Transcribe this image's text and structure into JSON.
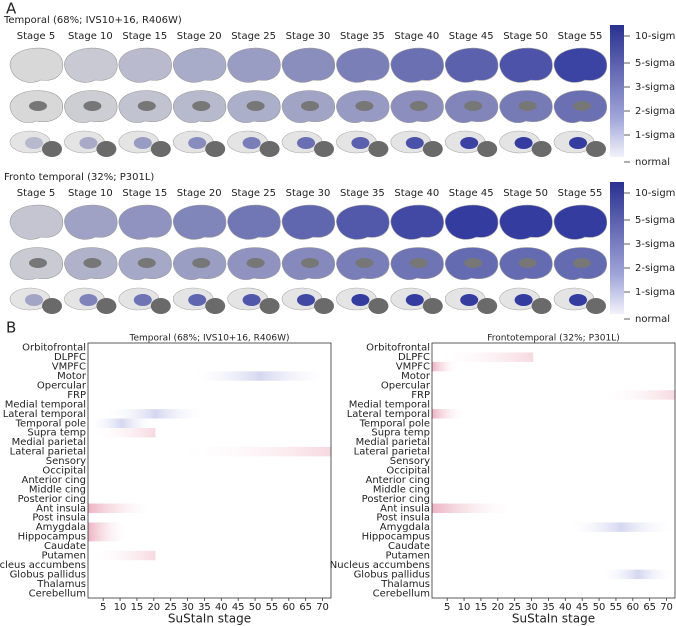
{
  "panel_a": {
    "label": "A",
    "groups": [
      {
        "title": "Temporal (68%; IVS10+16, R406W)",
        "stages": [
          "Stage 5",
          "Stage 10",
          "Stage 15",
          "Stage 20",
          "Stage 25",
          "Stage 30",
          "Stage 35",
          "Stage 40",
          "Stage 45",
          "Stage 50",
          "Stage 55"
        ],
        "colorbar": [
          "10-sigma",
          "5-sigma",
          "3-sigma",
          "2-sigma",
          "1-sigma",
          "normal"
        ]
      },
      {
        "title": "Fronto temporal (32%; P301L)",
        "stages": [
          "Stage 5",
          "Stage 10",
          "Stage 15",
          "Stage 20",
          "Stage 25",
          "Stage 30",
          "Stage 35",
          "Stage 40",
          "Stage 45",
          "Stage 50",
          "Stage 55"
        ],
        "colorbar": [
          "10-sigma",
          "5-sigma",
          "3-sigma",
          "2-sigma",
          "1-sigma",
          "normal"
        ]
      }
    ]
  },
  "panel_b": {
    "label": "B",
    "heatmaps": [
      {
        "title": "Temporal (68%; IVS10+16, R406W)",
        "regions": [
          "Orbitofrontal",
          "DLPFC",
          "VMPFC",
          "Motor",
          "Opercular",
          "FRP",
          "Medial temporal",
          "Lateral temporal",
          "Temporal pole",
          "Supra temp",
          "Medial parietal",
          "Lateral parietal",
          "Sensory",
          "Occipital",
          "Anterior cing",
          "Middle cing",
          "Posterior cing",
          "Ant insula",
          "Post insula",
          "Amygdala",
          "Hippocampus",
          "Caudate",
          "Putamen",
          "Nucleus accumbens",
          "Globus pallidus",
          "Thalamus",
          "Cerebellum"
        ],
        "xlim": [
          0.5,
          72.5
        ],
        "xticks": [
          5,
          10,
          15,
          20,
          25,
          30,
          35,
          40,
          45,
          50,
          55,
          60,
          65,
          70
        ],
        "xlabel": "SuStaIn stage"
      },
      {
        "title": "Frontotemporal (32%; P301L)",
        "regions": [
          "Orbitofrontal",
          "DLPFC",
          "VMPFC",
          "Motor",
          "Opercular",
          "FRP",
          "Medial temporal",
          "Lateral temporal",
          "Temporal pole",
          "Supra temp",
          "Medial parietal",
          "Lateral parietal",
          "Sensory",
          "Occipital",
          "Anterior cing",
          "Middle cing",
          "Posterior cing",
          "Ant insula",
          "Post insula",
          "Amygdala",
          "Hippocampus",
          "Caudate",
          "Putamen",
          "Nucleus accumbens",
          "Globus pallidus",
          "Thalamus",
          "Cerebellum"
        ],
        "xlim": [
          0.5,
          72.5
        ],
        "xticks": [
          5,
          10,
          15,
          20,
          25,
          30,
          35,
          40,
          45,
          50,
          55,
          60,
          65,
          70
        ],
        "xlabel": "SuStaIn stage"
      }
    ]
  }
}
